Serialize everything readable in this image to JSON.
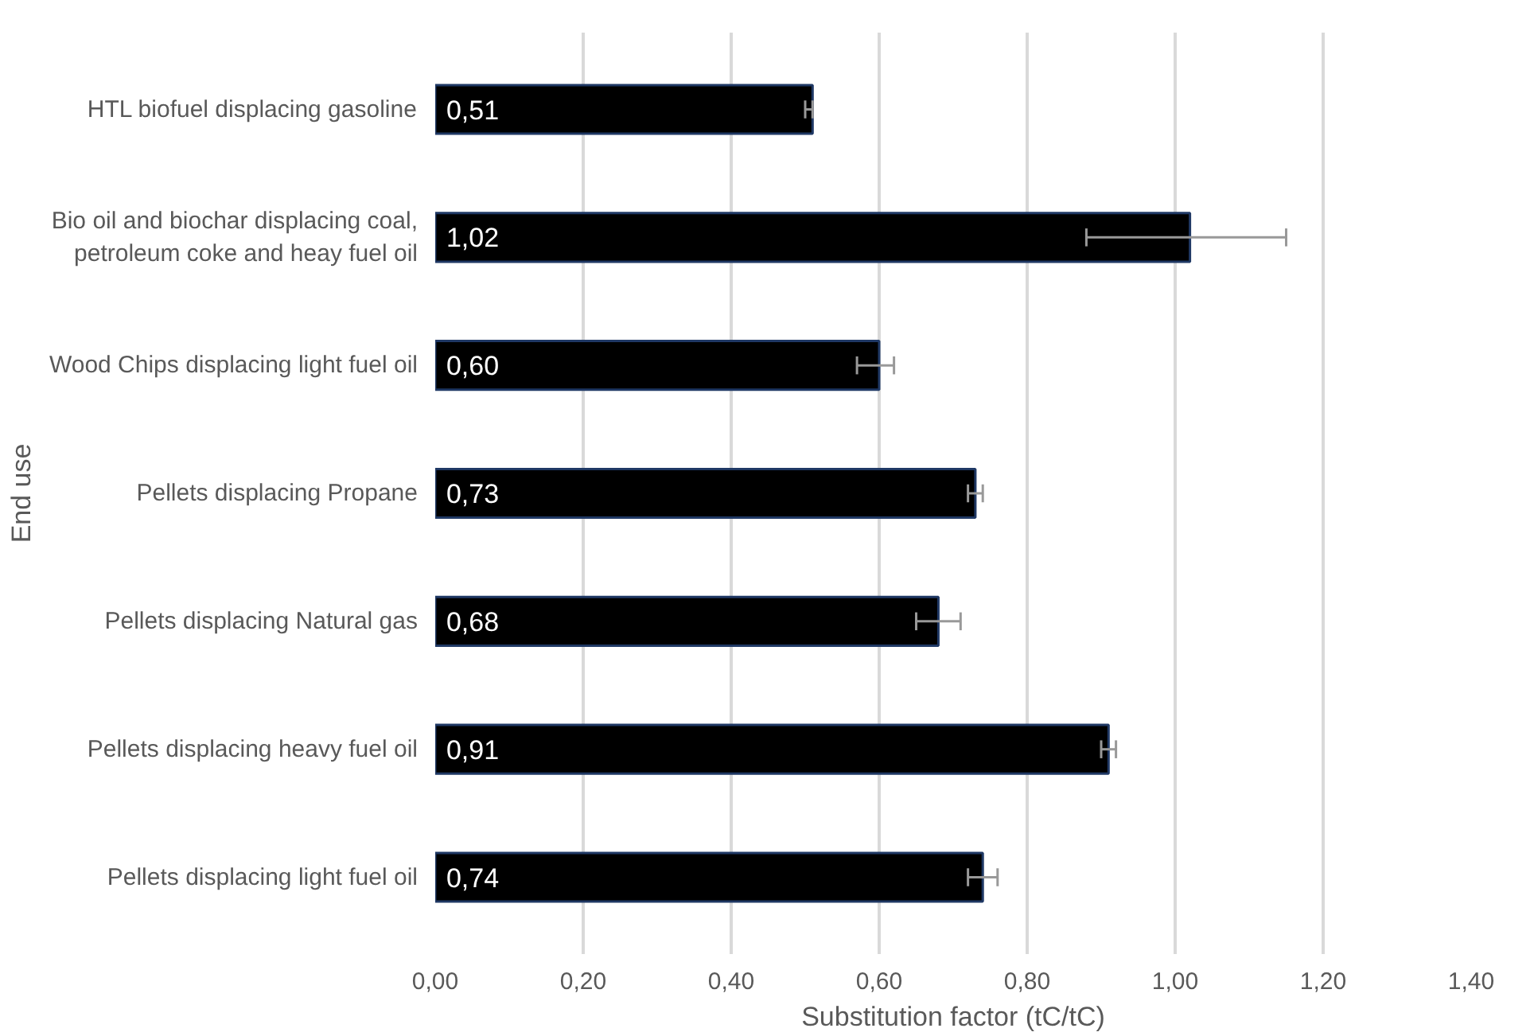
{
  "chart_data": {
    "type": "bar",
    "orientation": "horizontal",
    "xlabel": "Substitution factor (tC/tC)",
    "ylabel": "End use",
    "categories": [
      "HTL biofuel displacing gasoline",
      "Bio oil and biochar displacing coal,\npetroleum coke and heay fuel oil",
      "Wood Chips displacing light fuel oil",
      "Pellets displacing Propane",
      "Pellets displacing Natural gas",
      "Pellets displacing heavy fuel oil",
      "Pellets displacing light fuel oil"
    ],
    "values": [
      0.51,
      1.02,
      0.6,
      0.73,
      0.68,
      0.91,
      0.74
    ],
    "errors": [
      [
        0.5,
        0.51
      ],
      [
        0.88,
        1.15
      ],
      [
        0.57,
        0.62
      ],
      [
        0.72,
        0.74
      ],
      [
        0.65,
        0.71
      ],
      [
        0.9,
        0.92
      ],
      [
        0.72,
        0.76
      ]
    ],
    "value_labels": [
      "0,51",
      "1,02",
      "0,60",
      "0,73",
      "0,68",
      "0,91",
      "0,74"
    ],
    "color": "#000000",
    "grid": "x",
    "xlim": [
      0,
      1.4
    ],
    "xticks": [
      {
        "value": 0,
        "label": "0,00"
      },
      {
        "value": 0.2,
        "label": "0,20"
      },
      {
        "value": 0.4,
        "label": "0,40"
      },
      {
        "value": 0.6,
        "label": "0,60"
      },
      {
        "value": 0.8,
        "label": "0,80"
      },
      {
        "value": 1.0,
        "label": "1,00"
      },
      {
        "value": 1.2,
        "label": "1,20"
      },
      {
        "value": 1.4,
        "label": "1,40"
      }
    ]
  }
}
